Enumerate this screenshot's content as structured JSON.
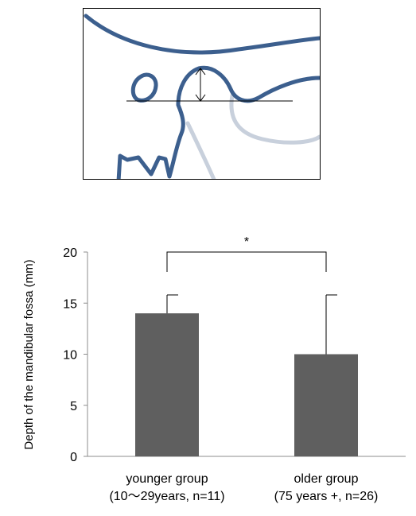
{
  "colors": {
    "bar_fill": "#5f5f5f",
    "outline_dark": "#3c5f8e",
    "outline_light": "#c8d0dc",
    "axis": "#8c8c8c",
    "line": "#000000"
  },
  "illustration": {
    "icons": [
      "mandibular-fossa-outline",
      "articular-eminence-outline",
      "depth-arrow-icon"
    ]
  },
  "chart_data": {
    "type": "bar",
    "categories": [
      [
        "younger group",
        "(10～29years, n=11)"
      ],
      [
        "older group",
        "(75 years +, n=26)"
      ]
    ],
    "values": [
      14.0,
      10.0
    ],
    "error_upper": [
      15.8,
      15.8
    ],
    "ylabel": "Depth of the mandibular fossa (mm)",
    "ylim": [
      0,
      20
    ],
    "yticks": [
      "0",
      "5",
      "10",
      "15",
      "20"
    ],
    "significance": {
      "between": [
        0,
        1
      ],
      "label": "*"
    },
    "grid": false,
    "legend": "none"
  }
}
